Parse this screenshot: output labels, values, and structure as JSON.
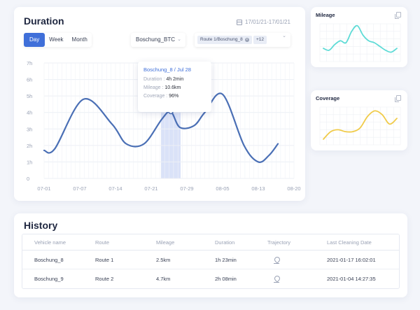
{
  "duration": {
    "title": "Duration",
    "date_range": "17/01/21-17/01/21",
    "period_tabs": [
      "Day",
      "Week",
      "Month"
    ],
    "active_tab": "Day",
    "vehicle_select": "Boschung_BTC",
    "route_tag": "Route 1/Boschung_8",
    "route_more": "+12",
    "tooltip": {
      "title": "Boschung_8 / Jul 28",
      "rows": [
        {
          "key": "Duration",
          "value": "4h 2min"
        },
        {
          "key": "Mileage",
          "value": "10.6km"
        },
        {
          "key": "Coverage",
          "value": "96%"
        }
      ]
    }
  },
  "chart_data": {
    "type": "line",
    "title": "Duration",
    "y_ticks": [
      "0",
      "1h",
      "2h",
      "3h",
      "4h",
      "5h",
      "6h",
      "7h"
    ],
    "ylim": [
      0,
      7
    ],
    "x_ticks": [
      "07-01",
      "07-07",
      "07-14",
      "07-21",
      "07-29",
      "08-05",
      "08-13",
      "08-20"
    ],
    "x_range": [
      0,
      7
    ],
    "series": [
      {
        "name": "Boschung_8",
        "x": [
          0,
          0.3,
          1.1,
          1.9,
          2.3,
          2.8,
          3.3,
          3.55,
          3.8,
          4.2,
          4.5,
          5.0,
          5.6,
          6.0,
          6.3,
          6.55
        ],
        "y": [
          1.7,
          1.8,
          4.8,
          3.3,
          2.1,
          2.1,
          3.6,
          4.05,
          3.1,
          3.2,
          4.0,
          5.1,
          2.0,
          1.0,
          1.4,
          2.1
        ],
        "color": "#4a6fb5"
      }
    ],
    "highlight": {
      "x": 3.55,
      "y": 4.05,
      "label": "Jul 28"
    },
    "grid": true
  },
  "mileage": {
    "title": "Mileage",
    "color": "#5edbd6",
    "values": [
      0.35,
      0.3,
      0.45,
      0.55,
      0.5,
      0.8,
      0.95,
      0.7,
      0.55,
      0.5,
      0.4,
      0.3,
      0.25,
      0.35
    ]
  },
  "coverage": {
    "title": "Coverage",
    "color": "#f0cb49",
    "values": [
      0.15,
      0.35,
      0.4,
      0.35,
      0.35,
      0.45,
      0.75,
      0.9,
      0.8,
      0.55,
      0.7
    ]
  },
  "history": {
    "title": "History",
    "columns": [
      "Vehicle name",
      "Route",
      "Mileage",
      "Duration",
      "Trajectory",
      "Last Cleaning Date"
    ],
    "rows": [
      {
        "vehicle": "Boschung_8",
        "route": "Route 1",
        "mileage": "2.5km",
        "duration": "1h 23min",
        "date": "2021-01-17 16:02:01"
      },
      {
        "vehicle": "Boschung_9",
        "route": "Route  2",
        "mileage": "4.7km",
        "duration": "2h 08min",
        "date": "2021-01-04 14:27:35"
      }
    ]
  }
}
